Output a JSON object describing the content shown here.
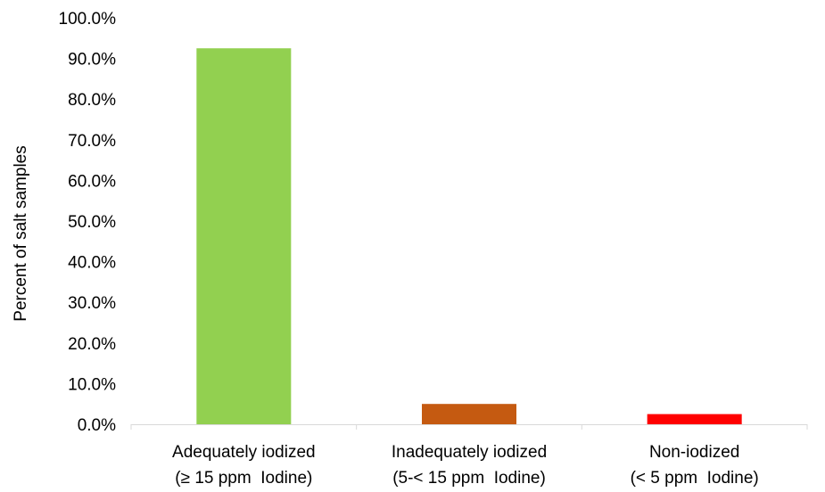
{
  "chart_data": {
    "type": "bar",
    "title": "",
    "xlabel": "",
    "ylabel": "Percent of salt samples",
    "ylim": [
      0,
      100
    ],
    "y_ticks": [
      "0.0%",
      "10.0%",
      "20.0%",
      "30.0%",
      "40.0%",
      "50.0%",
      "60.0%",
      "70.0%",
      "80.0%",
      "90.0%",
      "100.0%"
    ],
    "y_tick_values": [
      0,
      10,
      20,
      30,
      40,
      50,
      60,
      70,
      80,
      90,
      100
    ],
    "grid": false,
    "legend": "none",
    "categories": [
      {
        "line1": "Adequately iodized",
        "line2": "(≥ 15 ppm  Iodine)"
      },
      {
        "line1": "Inadequately iodized",
        "line2": "(5-< 15 ppm  Iodine)"
      },
      {
        "line1": "Non-iodized",
        "line2": "(< 5 ppm  Iodine)"
      }
    ],
    "values": [
      92.5,
      5.0,
      2.5
    ],
    "colors": [
      "#92d050",
      "#c55a11",
      "#ff0000"
    ]
  }
}
